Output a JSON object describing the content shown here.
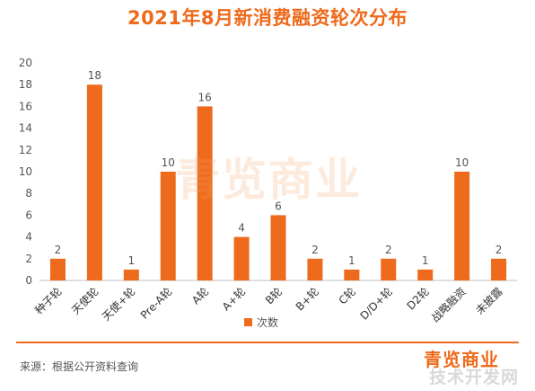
{
  "title": "2021年8月新消费融资轮次分布",
  "source": "来源：根据公开资料查询",
  "watermark_text": "青览商业",
  "brand_text": "青览商业",
  "corner_mark_text": "技术开发网",
  "colors": {
    "accent": "#ee6a1c",
    "bar": "#ee6a1c",
    "text": "#555555",
    "axis": "#bfbfbf"
  },
  "chart_data": {
    "type": "bar",
    "categories": [
      "种子轮",
      "天使轮",
      "天使+轮",
      "Pre-A轮",
      "A轮",
      "A+轮",
      "B轮",
      "B+轮",
      "C轮",
      "D/D+轮",
      "D2轮",
      "战略融资",
      "未披露"
    ],
    "series": [
      {
        "name": "次数",
        "values": [
          2,
          18,
          1,
          10,
          16,
          4,
          6,
          2,
          1,
          2,
          1,
          10,
          2
        ]
      }
    ],
    "yticks": [
      0,
      2,
      4,
      6,
      8,
      10,
      12,
      14,
      16,
      18,
      20
    ],
    "ylim": [
      0,
      20
    ],
    "grid": false,
    "legend": "bottom",
    "data_labels": true
  }
}
